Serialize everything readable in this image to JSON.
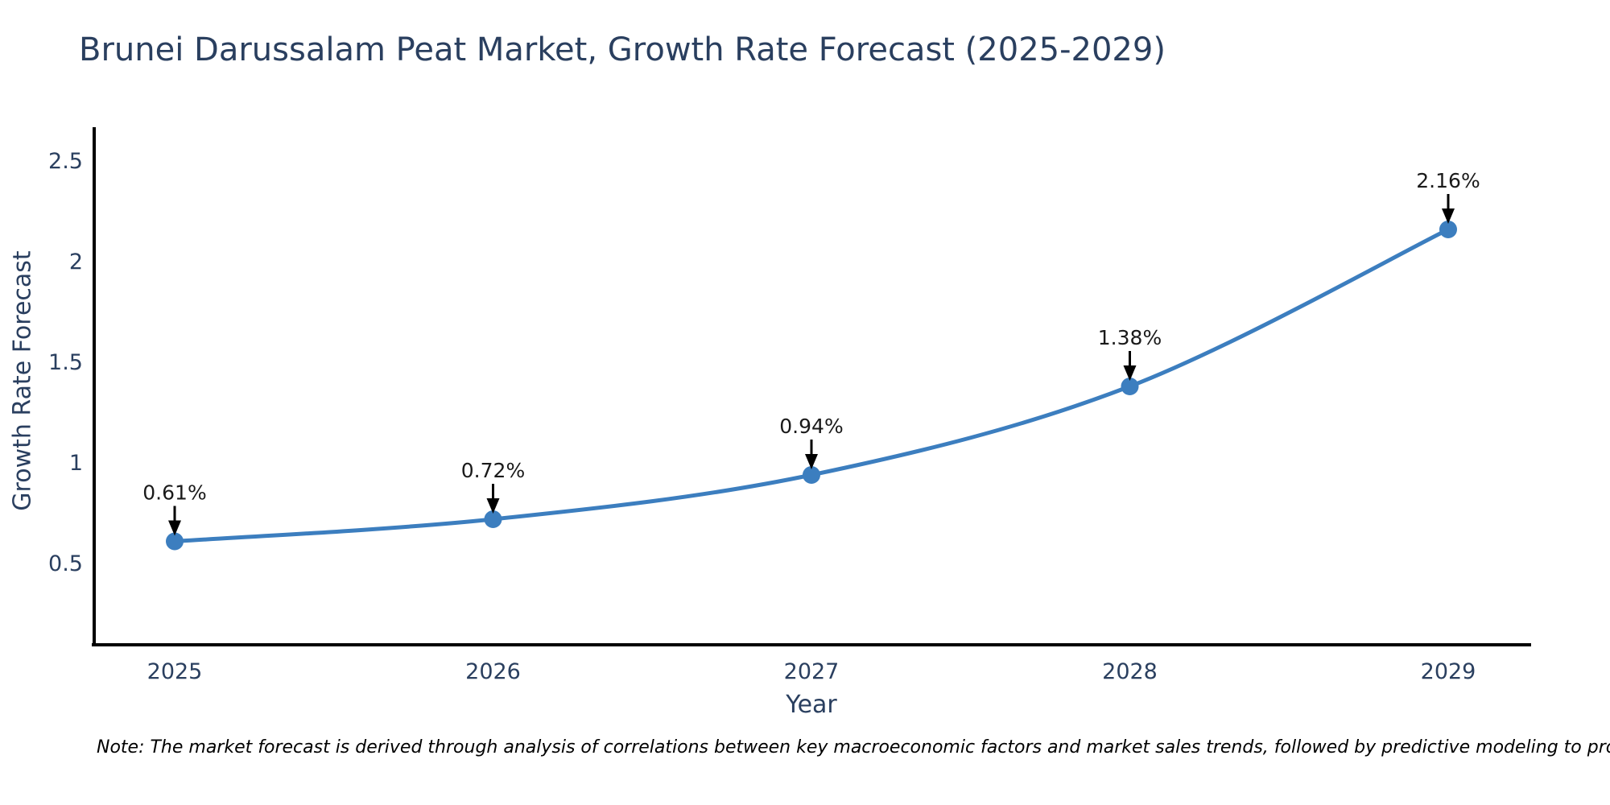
{
  "title": "Brunei Darussalam Peat Market, Growth Rate Forecast (2025-2029)",
  "note": "Note: The market forecast is derived through analysis of correlations between key macroeconomic factors and market sales trends, followed by predictive modeling to project future sales",
  "chart_data": {
    "type": "line",
    "title": "Brunei Darussalam Peat Market, Growth Rate Forecast (2025-2029)",
    "categories": [
      "2025",
      "2026",
      "2027",
      "2028",
      "2029"
    ],
    "series": [
      {
        "name": "Growth Rate Forecast",
        "values": [
          0.61,
          0.72,
          0.94,
          1.38,
          2.16
        ]
      }
    ],
    "point_labels": [
      "0.61%",
      "0.72%",
      "0.94%",
      "1.38%",
      "2.16%"
    ],
    "xlabel": "Year",
    "ylabel": "Growth Rate Forecast",
    "y_ticks": [
      0.5,
      1,
      1.5,
      2,
      2.5
    ],
    "ylim": [
      0.1,
      2.66
    ],
    "grid": false,
    "legend_position": "none",
    "line_shape": "spline",
    "annotation_arrow": "down",
    "colors": {
      "line": "#3c7ebf",
      "marker": "#3c7ebf",
      "axis": "#000000",
      "tick_text": "#2a3f5f",
      "annotation_text": "#1a1a1a",
      "annotation_arrow": "#000000"
    }
  }
}
